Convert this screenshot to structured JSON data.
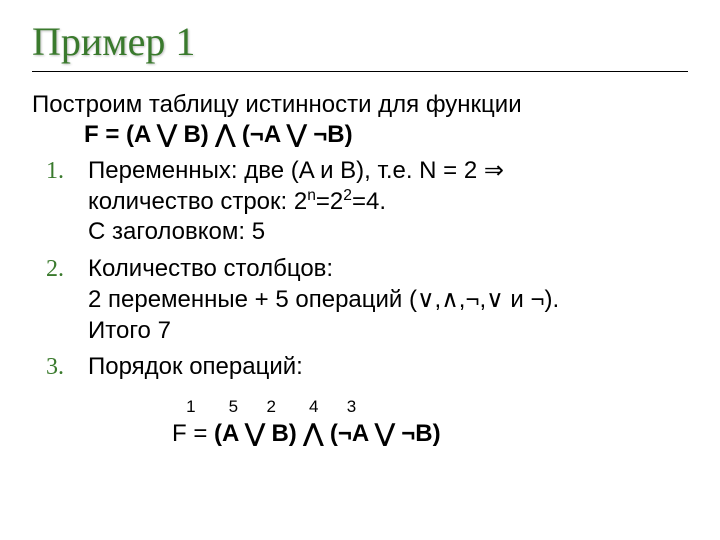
{
  "title": "Пример 1",
  "intro_line1": "Построим таблицу истинности для функции",
  "intro_formula": "F = (A ⋁ B) ⋀ (¬A ⋁ ¬B)",
  "items": {
    "i1_a": "Переменных: две (A и B), т.е. N = 2 ⇒",
    "i1_b_pre": "количество строк: 2",
    "i1_b_sup1": "n",
    "i1_b_mid": "=2",
    "i1_b_sup2": "2",
    "i1_b_post": "=4.",
    "i1_c": "С заголовком: 5",
    "i2_a": "Количество столбцов:",
    "i2_b": "2 переменные + 5 операций (∨,∧,¬,∨ и ¬).",
    "i2_c": "Итого 7",
    "i3": "Порядок операций:"
  },
  "order_numbers": "   1       5      2       4      3",
  "order_formula": "F = (A ⋁ B) ⋀ (¬A ⋁ ¬B)",
  "colors": {
    "title": "#3a7a2d",
    "text": "#000000",
    "background": "#ffffff",
    "rule": "#000000"
  },
  "fonts": {
    "title_family": "Times New Roman",
    "title_size_pt": 40,
    "body_family": "Arial",
    "body_size_pt": 24,
    "ordernum_size_pt": 17
  }
}
